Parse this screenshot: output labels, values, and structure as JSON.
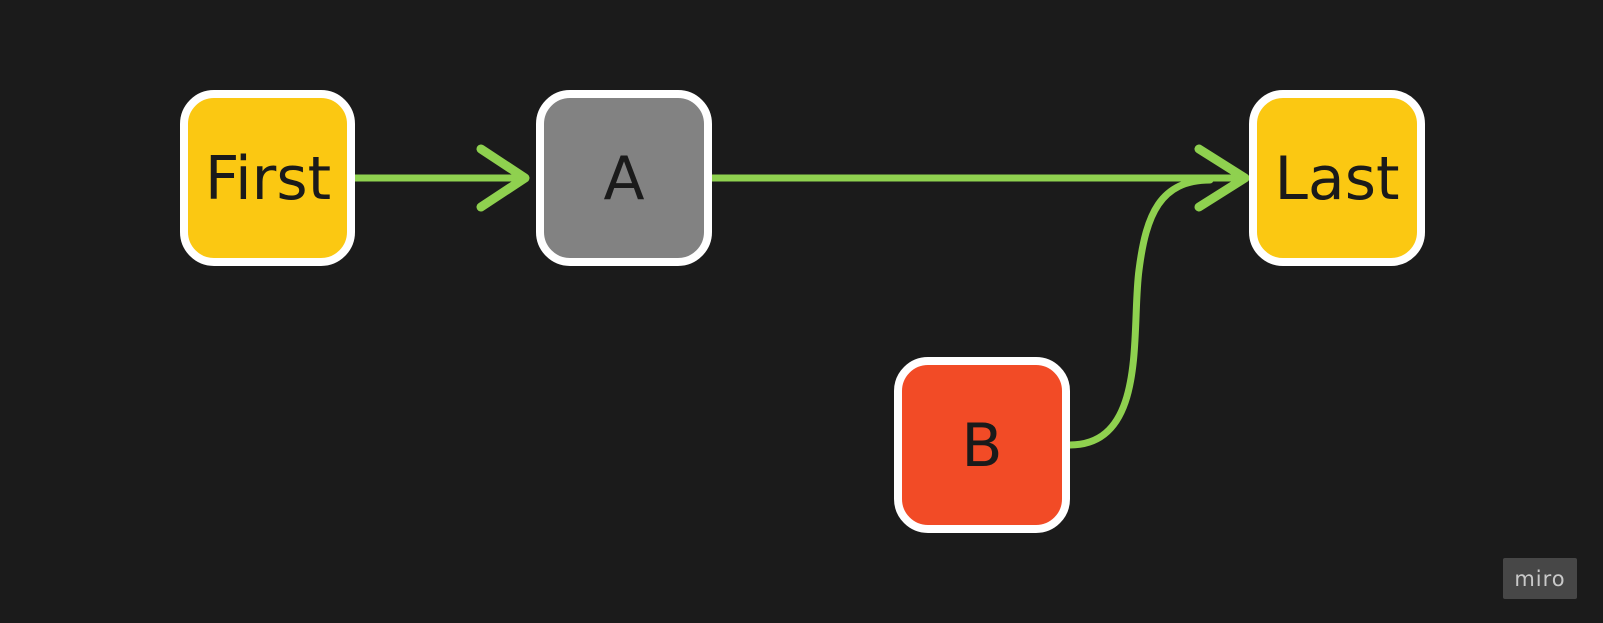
{
  "diagram": {
    "nodes": [
      {
        "id": "first",
        "label": "First",
        "color": "#FBC812"
      },
      {
        "id": "a",
        "label": "A",
        "color": "#828282"
      },
      {
        "id": "last",
        "label": "Last",
        "color": "#FBC812"
      },
      {
        "id": "b",
        "label": "B",
        "color": "#F24B26"
      }
    ],
    "edges": [
      {
        "from": "First",
        "to": "A",
        "arrowhead": true
      },
      {
        "from": "A",
        "to": "Last",
        "arrowhead": true
      },
      {
        "from": "B",
        "to": "Last",
        "arrowhead": false
      }
    ],
    "node_border_color": "#FFFFFF",
    "edge_color": "#8FD14F",
    "background_color": "#1B1B1B"
  },
  "watermark": {
    "text": "miro"
  }
}
